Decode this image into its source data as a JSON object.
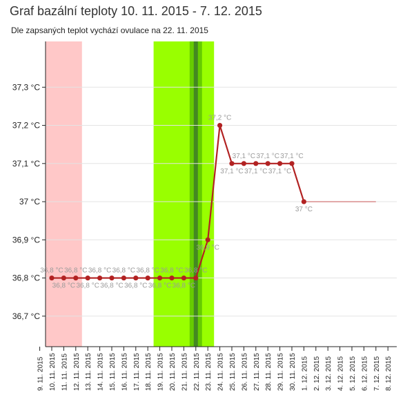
{
  "header": {
    "title": "Graf bazální teploty 10. 11. 2015 - 7. 12. 2015",
    "subtitle": "Dle zapsaných teplot vychází ovulace na 22. 11. 2015"
  },
  "colors": {
    "series": "#b22222",
    "menstruation_band": "#ffc8c8",
    "fertile_band": "#99ff00",
    "ovulation_outer": "#66cc00",
    "ovulation_inner": "#448822",
    "trend_line": "#cc6666"
  },
  "chart_data": {
    "type": "line",
    "title": "Graf bazální teploty 10. 11. 2015 - 7. 12. 2015",
    "subtitle": "Dle zapsaných teplot vychází ovulace na 22. 11. 2015",
    "xlabel": "",
    "ylabel": "",
    "categories": [
      "9. 11. 2015",
      "10. 11. 2015",
      "11. 11. 2015",
      "12. 11. 2015",
      "13. 11. 2015",
      "14. 11. 2015",
      "15. 11. 2015",
      "16. 11. 2015",
      "17. 11. 2015",
      "18. 11. 2015",
      "19. 11. 2015",
      "20. 11. 2015",
      "21. 11. 2015",
      "22. 11. 2015",
      "23. 11. 2015",
      "24. 11. 2015",
      "25. 11. 2015",
      "26. 11. 2015",
      "27. 11. 2015",
      "28. 11. 2015",
      "29. 11. 2015",
      "30. 11. 2015",
      "1. 12. 2015",
      "2. 12. 2015",
      "3. 12. 2015",
      "4. 12. 2015",
      "5. 12. 2015",
      "6. 12. 2015",
      "7. 12. 2015",
      "8. 12. 2015"
    ],
    "ylim": [
      36.62,
      37.42
    ],
    "yticks": [
      {
        "value": 36.7,
        "label": "36,7 °C"
      },
      {
        "value": 36.8,
        "label": "36,8 °C"
      },
      {
        "value": 36.9,
        "label": "36,9 °C"
      },
      {
        "value": 37.0,
        "label": "37 °C"
      },
      {
        "value": 37.1,
        "label": "37,1 °C"
      },
      {
        "value": 37.2,
        "label": "37,2 °C"
      },
      {
        "value": 37.3,
        "label": "37,3 °C"
      }
    ],
    "grid": true,
    "series": [
      {
        "x": [
          "10. 11. 2015",
          "11. 11. 2015",
          "12. 11. 2015",
          "13. 11. 2015",
          "14. 11. 2015",
          "15. 11. 2015",
          "16. 11. 2015",
          "17. 11. 2015",
          "18. 11. 2015",
          "19. 11. 2015",
          "20. 11. 2015",
          "21. 11. 2015",
          "22. 11. 2015",
          "23. 11. 2015",
          "24. 11. 2015",
          "25. 11. 2015",
          "26. 11. 2015",
          "27. 11. 2015",
          "28. 11. 2015",
          "29. 11. 2015",
          "30. 11. 2015",
          "1. 12. 2015"
        ],
        "values": [
          36.8,
          36.8,
          36.8,
          36.8,
          36.8,
          36.8,
          36.8,
          36.8,
          36.8,
          36.8,
          36.8,
          36.8,
          36.8,
          36.9,
          37.2,
          37.1,
          37.1,
          37.1,
          37.1,
          37.1,
          37.1,
          37.0
        ],
        "labels": [
          "36,8 °C",
          "36,8 °C",
          "36,8 °C",
          "36,8 °C",
          "36,8 °C",
          "36,8 °C",
          "36,8 °C",
          "36,8 °C",
          "36,8 °C",
          "36,8 °C",
          "36,8 °C",
          "36,8 °C",
          "36,8 °C",
          "36,9 °C",
          "37,2 °C",
          "37,1 °C",
          "37,1 °C",
          "37,1 °C",
          "37,1 °C",
          "37,1 °C",
          "37,1 °C",
          "37 °C"
        ]
      }
    ],
    "trend_line": {
      "from": "1. 12. 2015",
      "to": "7. 12. 2015",
      "value": 37.0
    },
    "bands": [
      {
        "kind": "menstruation",
        "from": "10. 11. 2015",
        "to": "12. 11. 2015"
      },
      {
        "kind": "fertile",
        "from": "19. 11. 2015",
        "to": "23. 11. 2015"
      },
      {
        "kind": "ovulation",
        "from": "22. 11. 2015",
        "to": "22. 11. 2015"
      }
    ]
  }
}
